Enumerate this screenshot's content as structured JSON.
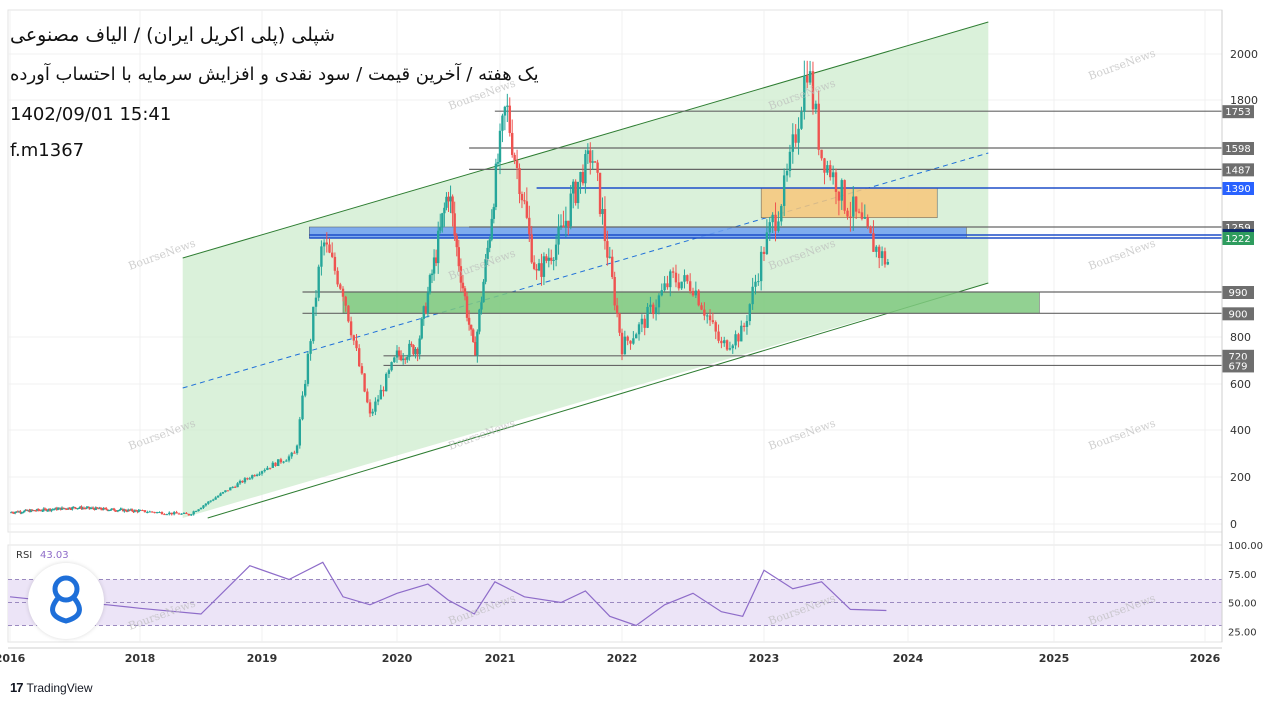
{
  "header": {
    "title": "شپلی (پلی اکریل ایران) / الیاف مصنوعی",
    "subtitle": "یک هفته / آخرین قیمت / سود نقدی و افزایش سرمایه با احتساب آورده",
    "datetime": "1402/09/01 15:41",
    "symbol": "f.m1367"
  },
  "branding": {
    "platform": "TradingView",
    "watermark": "BourseNews"
  },
  "colors": {
    "up": "#26a69a",
    "down": "#ef5350",
    "channel": "#cdeccd",
    "green_zone": "#7fc97f",
    "orange_zone": "#f7c77a",
    "blue_zone": "#6fa0f0",
    "rsi_line": "#8e6cc9",
    "rsi_band": "#ece4f7"
  },
  "chart_data": [
    {
      "type": "candlestick",
      "x_axis": {
        "ticks": [
          "2016",
          "2018",
          "2019",
          "2020",
          "2021",
          "2022",
          "2023",
          "2024",
          "2025",
          "2026"
        ]
      },
      "y_axis": {
        "ticks": [
          0,
          200,
          400,
          600,
          800,
          1800,
          2000
        ],
        "range": [
          -50,
          2150
        ]
      },
      "price_series": {
        "x": [
          2016.0,
          2017.0,
          2018.0,
          2018.4,
          2018.7,
          2019.0,
          2019.25,
          2019.45,
          2019.6,
          2019.8,
          2020.0,
          2020.2,
          2020.4,
          2020.5,
          2020.75,
          2020.95,
          2021.05,
          2021.15,
          2021.3,
          2021.5,
          2021.75,
          2021.9,
          2022.0,
          2022.15,
          2022.35,
          2022.5,
          2022.7,
          2022.85,
          2023.0,
          2023.15,
          2023.3,
          2023.4,
          2023.55,
          2023.7,
          2023.85
        ],
        "y": [
          50,
          70,
          55,
          40,
          140,
          230,
          300,
          1210,
          1000,
          460,
          720,
          760,
          1200,
          1390,
          720,
          1420,
          1780,
          1460,
          1060,
          1230,
          1570,
          1100,
          760,
          860,
          1050,
          1020,
          760,
          820,
          1180,
          1410,
          1960,
          1560,
          1360,
          1240,
          1120
        ]
      },
      "levels": [
        1753,
        1598,
        1487,
        1390,
        1259,
        1232,
        1222,
        990,
        900,
        720,
        679
      ],
      "zones": [
        {
          "name": "orange",
          "from": 1290,
          "to": 1390
        },
        {
          "name": "blue",
          "from": 1222,
          "to": 1259
        },
        {
          "name": "green",
          "from": 900,
          "to": 990
        }
      ],
      "channel": {
        "x_start": 2018.35,
        "x_end": 2024.55
      }
    },
    {
      "type": "line",
      "indicator": {
        "name": "RSI",
        "value": "43.03"
      },
      "y_axis": {
        "ticks": [
          "100.00",
          "75.00",
          "50.00",
          "25.00"
        ],
        "range": [
          20,
          100
        ],
        "band": [
          30,
          70
        ]
      },
      "x": [
        2016.0,
        2016.5,
        2017.0,
        2017.5,
        2018.0,
        2018.5,
        2018.9,
        2019.2,
        2019.45,
        2019.6,
        2019.8,
        2020.0,
        2020.3,
        2020.5,
        2020.75,
        2020.95,
        2021.2,
        2021.5,
        2021.7,
        2021.9,
        2022.1,
        2022.3,
        2022.5,
        2022.7,
        2022.85,
        2023.0,
        2023.2,
        2023.4,
        2023.6,
        2023.85
      ],
      "y": [
        55,
        52,
        50,
        48,
        45,
        40,
        82,
        70,
        85,
        55,
        48,
        58,
        66,
        52,
        40,
        68,
        55,
        50,
        60,
        38,
        30,
        48,
        58,
        42,
        38,
        78,
        62,
        68,
        44,
        43
      ]
    }
  ]
}
